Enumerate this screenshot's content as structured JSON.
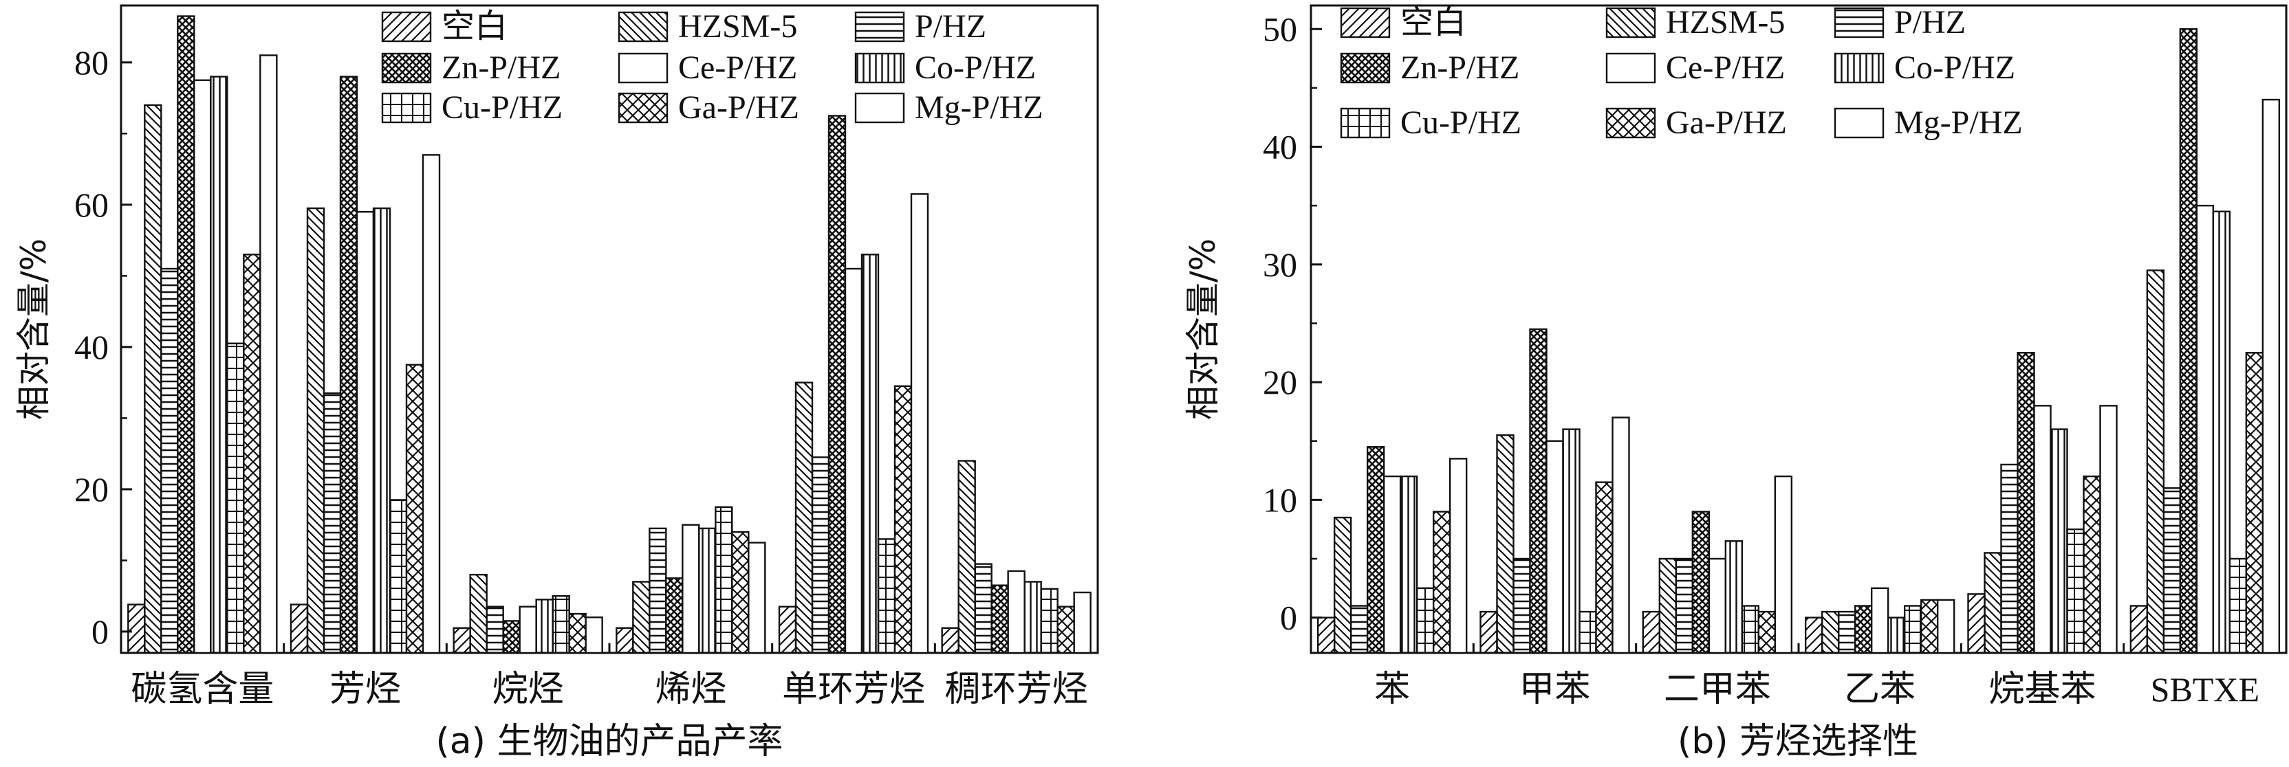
{
  "series_names": [
    "空白",
    "HZSM-5",
    "P/HZ",
    "Zn-P/HZ",
    "Ce-P/HZ",
    "Co-P/HZ",
    "Cu-P/HZ",
    "Ga-P/HZ",
    "Mg-P/HZ"
  ],
  "chart_data": [
    {
      "type": "bar",
      "caption": "(a) 生物油的产品产率",
      "ylabel": "相对含量/%",
      "xlabel": "",
      "ylim": [
        -3,
        88
      ],
      "yticks": [
        0,
        20,
        40,
        60,
        80
      ],
      "legend": "top",
      "categories": [
        "碳氢含量",
        "芳烃",
        "烷烃",
        "烯烃",
        "单环芳烃",
        "稠环芳烃"
      ],
      "series": [
        {
          "name": "空白",
          "values": [
            3.8,
            3.8,
            0.5,
            0.5,
            3.5,
            0.5
          ]
        },
        {
          "name": "HZSM-5",
          "values": [
            74,
            59.5,
            8,
            7,
            35,
            24
          ]
        },
        {
          "name": "P/HZ",
          "values": [
            51,
            33.5,
            3.5,
            14.5,
            24.5,
            9.5
          ]
        },
        {
          "name": "Zn-P/HZ",
          "values": [
            86.5,
            78,
            1.5,
            7.5,
            72.5,
            6.5
          ]
        },
        {
          "name": "Ce-P/HZ",
          "values": [
            77.5,
            59,
            3.5,
            15,
            51,
            8.5
          ]
        },
        {
          "name": "Co-P/HZ",
          "values": [
            78,
            59.5,
            4.5,
            14.5,
            53,
            7
          ]
        },
        {
          "name": "Cu-P/HZ",
          "values": [
            40.5,
            18.5,
            5,
            17.5,
            13,
            6
          ]
        },
        {
          "name": "Ga-P/HZ",
          "values": [
            53,
            37.5,
            2.5,
            14,
            34.5,
            3.5
          ]
        },
        {
          "name": "Mg-P/HZ",
          "values": [
            81,
            67,
            2,
            12.5,
            61.5,
            5.5
          ]
        }
      ]
    },
    {
      "type": "bar",
      "caption": "(b) 芳烃选择性",
      "ylabel": "相对含量/%",
      "xlabel": "",
      "ylim": [
        -3,
        52
      ],
      "yticks": [
        0,
        10,
        20,
        30,
        40,
        50
      ],
      "legend": "top",
      "categories": [
        "苯",
        "甲苯",
        "二甲苯",
        "乙苯",
        "烷基苯",
        "SBTXE"
      ],
      "series": [
        {
          "name": "空白",
          "values": [
            0,
            0.5,
            0.5,
            0,
            2,
            1
          ]
        },
        {
          "name": "HZSM-5",
          "values": [
            8.5,
            15.5,
            5,
            0.5,
            5.5,
            29.5
          ]
        },
        {
          "name": "P/HZ",
          "values": [
            1,
            5,
            5,
            0.5,
            13,
            11
          ]
        },
        {
          "name": "Zn-P/HZ",
          "values": [
            14.5,
            24.5,
            9,
            1,
            22.5,
            50
          ]
        },
        {
          "name": "Ce-P/HZ",
          "values": [
            12,
            15,
            5,
            2.5,
            18,
            35
          ]
        },
        {
          "name": "Co-P/HZ",
          "values": [
            12,
            16,
            6.5,
            0,
            16,
            34.5
          ]
        },
        {
          "name": "Cu-P/HZ",
          "values": [
            2.5,
            0.5,
            1,
            1,
            7.5,
            5
          ]
        },
        {
          "name": "Ga-P/HZ",
          "values": [
            9,
            11.5,
            0.5,
            1.5,
            12,
            22.5
          ]
        },
        {
          "name": "Mg-P/HZ",
          "values": [
            13.5,
            17,
            12,
            1.5,
            18,
            44
          ]
        }
      ]
    }
  ]
}
